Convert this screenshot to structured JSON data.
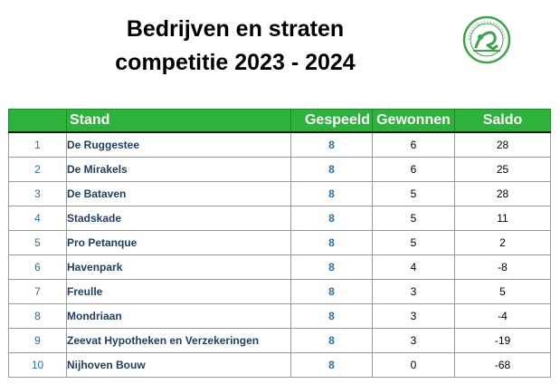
{
  "title": {
    "line1": "Bedrijven en straten",
    "line2": "competitie 2023 - 2024"
  },
  "logo": {
    "icon": "club-logo-icon",
    "color": "#3aa64a"
  },
  "colors": {
    "header_bg": "#2db33c",
    "header_text": "#ffffff",
    "rank_text": "#2a6ea8",
    "team_text": "#1f3f66"
  },
  "table": {
    "headers": {
      "rank": "",
      "team": "Stand",
      "played": "Gespeeld",
      "won": "Gewonnen",
      "saldo": "Saldo"
    },
    "rows": [
      {
        "rank": "1",
        "team": "De Ruggestee",
        "played": "8",
        "won": "6",
        "saldo": "28"
      },
      {
        "rank": "2",
        "team": "De Mirakels",
        "played": "8",
        "won": "6",
        "saldo": "25"
      },
      {
        "rank": "3",
        "team": "De Bataven",
        "played": "8",
        "won": "5",
        "saldo": "28"
      },
      {
        "rank": "4",
        "team": "Stadskade",
        "played": "8",
        "won": "5",
        "saldo": "11"
      },
      {
        "rank": "5",
        "team": "Pro Petanque",
        "played": "8",
        "won": "5",
        "saldo": "2"
      },
      {
        "rank": "6",
        "team": "Havenpark",
        "played": "8",
        "won": "4",
        "saldo": "-8"
      },
      {
        "rank": "7",
        "team": "Freulle",
        "played": "8",
        "won": "3",
        "saldo": "5"
      },
      {
        "rank": "8",
        "team": "Mondriaan",
        "played": "8",
        "won": "3",
        "saldo": "-4"
      },
      {
        "rank": "9",
        "team": "Zeevat Hypotheken en Verzekeringen",
        "played": "8",
        "won": "3",
        "saldo": "-19"
      },
      {
        "rank": "10",
        "team": "Nijhoven Bouw",
        "played": "8",
        "won": "0",
        "saldo": "-68"
      }
    ]
  }
}
